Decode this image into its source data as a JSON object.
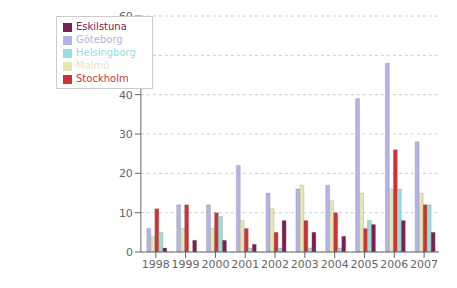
{
  "chart_data": {
    "type": "bar",
    "categories": [
      "1998",
      "1999",
      "2000",
      "2001",
      "2002",
      "2003",
      "2004",
      "2005",
      "2006",
      "2007"
    ],
    "series": [
      {
        "name": "Göteborg",
        "color": "#b3b3e6",
        "values": [
          6,
          12,
          12,
          22,
          15,
          16,
          17,
          39,
          48,
          28
        ]
      },
      {
        "name": "Malmö",
        "color": "#e6e6b3",
        "values": [
          4,
          6,
          6,
          8,
          11,
          17,
          13,
          15,
          16,
          15
        ]
      },
      {
        "name": "Stockholm",
        "color": "#cc3333",
        "values": [
          11,
          12,
          10,
          6,
          5,
          8,
          10,
          6,
          26,
          12
        ]
      },
      {
        "name": "Helsingborg",
        "color": "#99dddd",
        "values": [
          5,
          0,
          9,
          1,
          1,
          1,
          1,
          8,
          16,
          12
        ]
      },
      {
        "name": "Eskilstuna",
        "color": "#7a1f4e",
        "values": [
          1,
          3,
          3,
          2,
          8,
          5,
          4,
          7,
          8,
          5
        ]
      }
    ],
    "ylim": [
      0,
      60
    ],
    "yticks": [
      0,
      10,
      20,
      30,
      40,
      50,
      60
    ],
    "grid": true,
    "legend": "upper left"
  }
}
